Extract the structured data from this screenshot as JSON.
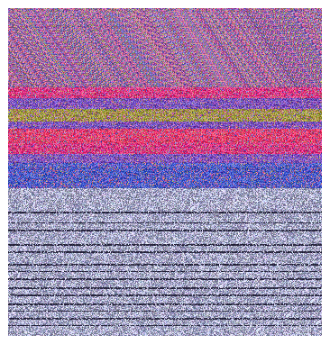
{
  "image": {
    "description_tag": "static-noise-image",
    "background_color": "#ffffff",
    "upper_palette": [
      "#c25aa8",
      "#8f5fb0",
      "#5f6fc0",
      "#d86a8f",
      "#a7a26e"
    ],
    "band_colors": {
      "magenta": "#e0307a",
      "olive": "#9f9a3a",
      "pink_red": "#f03a6a",
      "violet": "#7450c0",
      "blue": "#4058c8"
    },
    "lower_base_color": "#a8a9c8",
    "lower_line_color": "#2a2840"
  }
}
